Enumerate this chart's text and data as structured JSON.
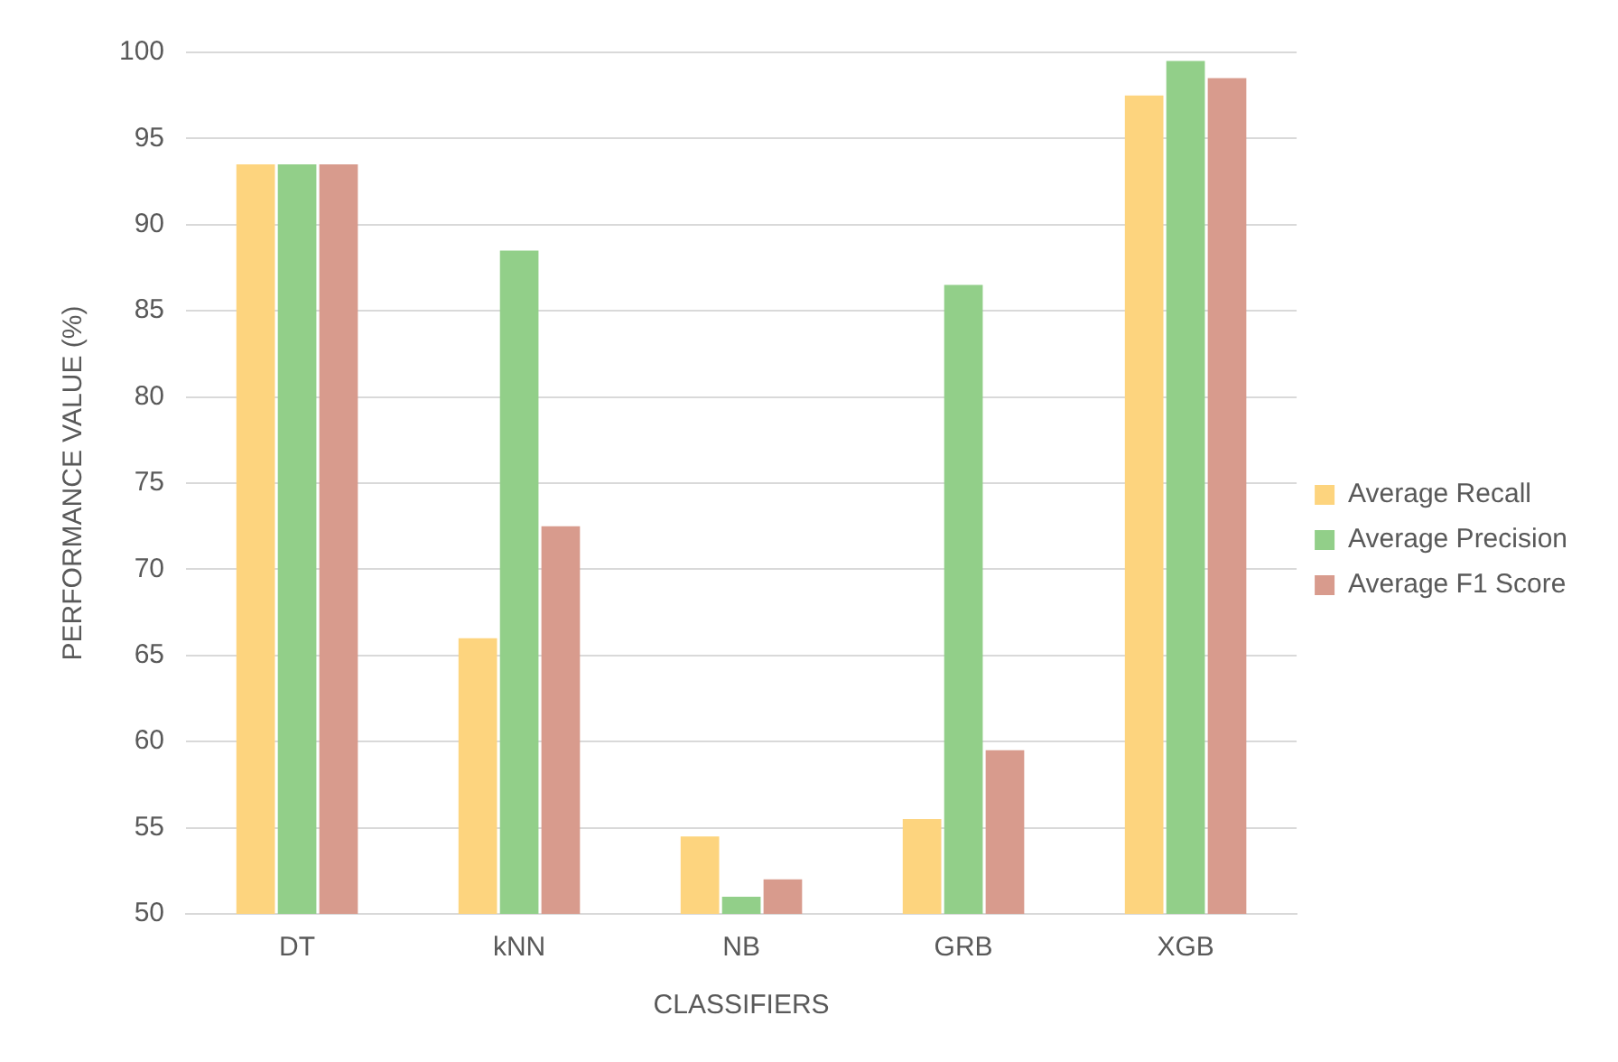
{
  "chart_data": {
    "type": "bar",
    "xlabel": "CLASSIFIERS",
    "ylabel": "PERFORMANCE VALUE (%)",
    "categories": [
      "DT",
      "kNN",
      "NB",
      "GRB",
      "XGB"
    ],
    "series": [
      {
        "name": "Average Recall",
        "color": "#fdd47e",
        "values": [
          93.5,
          66,
          54.5,
          55.5,
          97.5
        ]
      },
      {
        "name": "Average Precision",
        "color": "#92cf89",
        "values": [
          93.5,
          88.5,
          51,
          86.5,
          99.5
        ]
      },
      {
        "name": "Average F1 Score",
        "color": "#d89b8d",
        "values": [
          93.5,
          72.5,
          52,
          59.5,
          98.5
        ]
      }
    ],
    "ylim": [
      50,
      100
    ],
    "yticks": [
      50,
      55,
      60,
      65,
      70,
      75,
      80,
      85,
      90,
      95,
      100
    ],
    "grid": "y",
    "legend": "right"
  }
}
